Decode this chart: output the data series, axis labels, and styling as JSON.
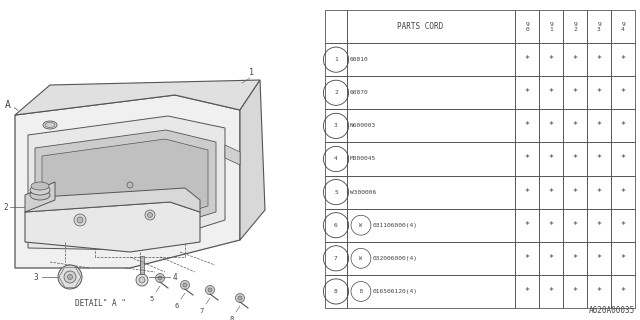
{
  "bg_color": "#ffffff",
  "line_color": "#555555",
  "text_color": "#444444",
  "ref_code": "A620A00035",
  "parts_cord_header": "PARTS CORD",
  "year_cols": [
    "9\n0",
    "9\n1",
    "9\n2",
    "9\n3",
    "9\n4"
  ],
  "rows": [
    {
      "num": "1",
      "code": "60810",
      "prefix": ""
    },
    {
      "num": "2",
      "code": "60870",
      "prefix": ""
    },
    {
      "num": "3",
      "code": "N600003",
      "prefix": ""
    },
    {
      "num": "4",
      "code": "M000045",
      "prefix": ""
    },
    {
      "num": "5",
      "code": "W300006",
      "prefix": ""
    },
    {
      "num": "6",
      "code": "031106000(4)",
      "prefix": "W"
    },
    {
      "num": "7",
      "code": "032006000(4)",
      "prefix": "W"
    },
    {
      "num": "8",
      "code": "016506120(4)",
      "prefix": "B"
    }
  ]
}
